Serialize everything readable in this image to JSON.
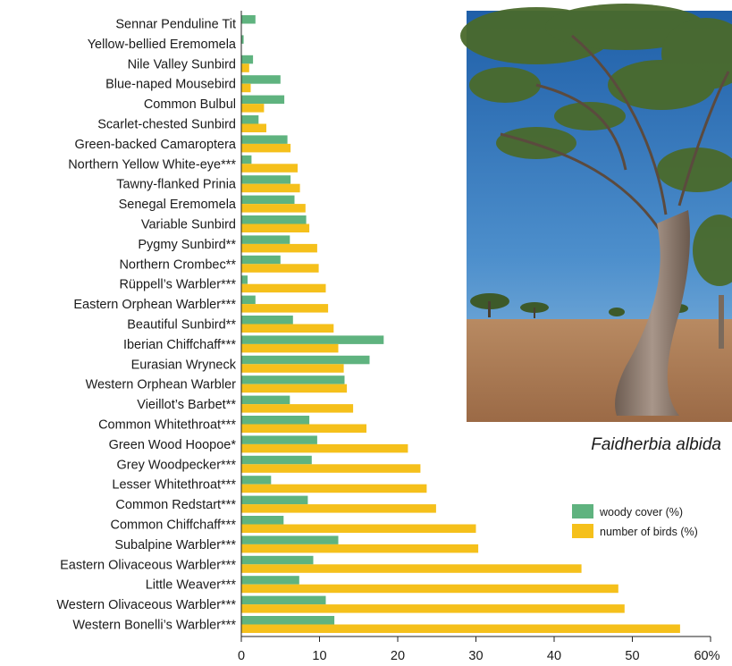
{
  "chart_data": {
    "type": "bar",
    "orientation": "horizontal",
    "categories": [
      "Sennar Penduline Tit",
      "Yellow-bellied Eremomela",
      "Nile Valley Sunbird",
      "Blue-naped Mousebird",
      "Common Bulbul",
      "Scarlet-chested Sunbird",
      "Green-backed Camaroptera",
      "Northern Yellow White-eye***",
      "Tawny-flanked Prinia",
      "Senegal Eremomela",
      "Variable Sunbird",
      "Pygmy Sunbird**",
      "Northern Crombec**",
      "Rüppell’s Warbler***",
      "Eastern Orphean Warbler***",
      "Beautiful Sunbird**",
      "Iberian Chiffchaff***",
      "Eurasian Wryneck",
      "Western Orphean Warbler",
      "Vieillot’s Barbet**",
      "Common Whitethroat***",
      "Green Wood Hoopoe*",
      "Grey Woodpecker***",
      "Lesser Whitethroat***",
      "Common Redstart***",
      "Common Chiffchaff***",
      "Subalpine Warbler***",
      "Eastern Olivaceous Warbler***",
      "Little Weaver***",
      "Western Olivaceous Warbler***",
      "Western Bonelli’s Warbler***"
    ],
    "series": [
      {
        "name": "woody cover (%)",
        "color": "#5fb37f",
        "values": [
          1.8,
          0.3,
          1.5,
          5.0,
          5.5,
          2.2,
          5.9,
          1.3,
          6.3,
          6.8,
          8.3,
          6.2,
          5.0,
          0.8,
          1.8,
          6.6,
          18.2,
          16.4,
          13.2,
          6.2,
          8.7,
          9.7,
          9.0,
          3.8,
          8.5,
          5.4,
          12.4,
          9.2,
          7.4,
          10.8,
          11.9
        ]
      },
      {
        "name": "number of birds (%)",
        "color": "#f5c01b",
        "values": [
          0,
          0,
          1.0,
          1.2,
          2.9,
          3.2,
          6.3,
          7.2,
          7.5,
          8.2,
          8.7,
          9.7,
          9.9,
          10.8,
          11.1,
          11.8,
          12.4,
          13.1,
          13.5,
          14.3,
          16.0,
          21.3,
          22.9,
          23.7,
          24.9,
          30.0,
          30.3,
          43.5,
          48.2,
          49.0,
          56.1
        ]
      }
    ],
    "x_ticks": [
      "0",
      "10",
      "20",
      "30",
      "40",
      "50",
      "60%"
    ],
    "xlim": [
      0,
      60
    ],
    "legend_position": "right",
    "grid": false
  },
  "photo": {
    "caption": "Faidherbia albida",
    "sky_color": "#2a6db4",
    "ground_color": "#b07c52",
    "trunk_color": "#8a7868"
  }
}
